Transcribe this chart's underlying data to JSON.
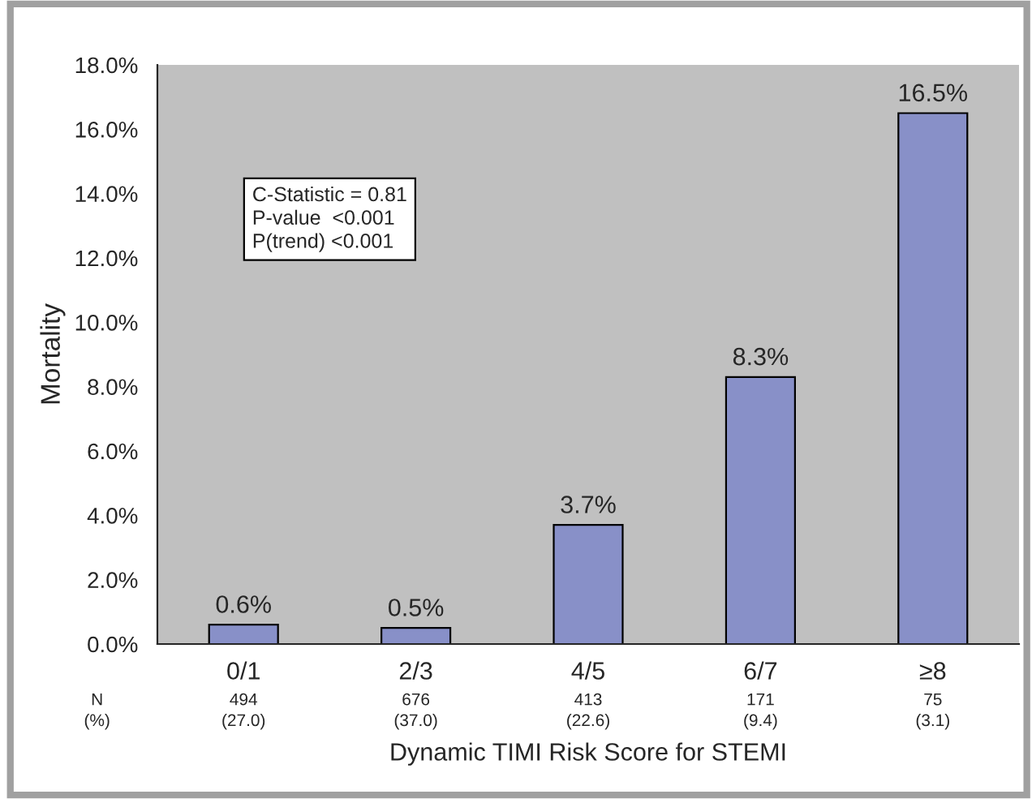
{
  "chart_data": {
    "type": "bar",
    "ylabel": "Mortality",
    "xlabel": "Dynamic TIMI Risk Score for STEMI",
    "categories": [
      "0/1",
      "2/3",
      "4/5",
      "6/7",
      "≥8"
    ],
    "values": [
      0.6,
      0.5,
      3.7,
      8.3,
      16.5
    ],
    "value_labels": [
      "0.6%",
      "0.5%",
      "3.7%",
      "8.3%",
      "16.5%"
    ],
    "color": "#8890c8",
    "ylim": [
      0,
      18
    ],
    "yticks": [
      {
        "value": 0,
        "label": "0.0%"
      },
      {
        "value": 2,
        "label": "2.0%"
      },
      {
        "value": 4,
        "label": "4.0%"
      },
      {
        "value": 6,
        "label": "6.0%"
      },
      {
        "value": 8,
        "label": "8.0%"
      },
      {
        "value": 10,
        "label": "10.0%"
      },
      {
        "value": 12,
        "label": "12.0%"
      },
      {
        "value": 14,
        "label": "14.0%"
      },
      {
        "value": 16,
        "label": "16.0%"
      },
      {
        "value": 18,
        "label": "18.0%"
      }
    ],
    "grid": false,
    "annotations": [
      "C-Statistic = 0.81\nP-value  <0.001\nP(trend) <0.001",
      "N",
      "(%)",
      "494",
      "676",
      "413",
      "171",
      "75",
      "(27.0)",
      "(37.0)",
      "(22.6)",
      "(9.4)",
      "(3.1)"
    ]
  }
}
